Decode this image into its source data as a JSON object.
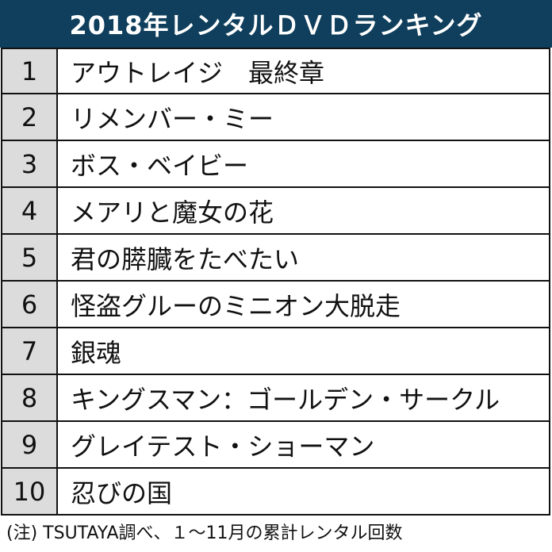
{
  "header": {
    "title": "2018年レンタルＤＶＤランキング"
  },
  "colors": {
    "header_bg": "#0f3f5c",
    "rank_bg": "#dcdcdc"
  },
  "rankings": [
    {
      "rank": "1",
      "title": "アウトレイジ　最終章"
    },
    {
      "rank": "2",
      "title": "リメンバー・ミー"
    },
    {
      "rank": "3",
      "title": "ボス・ベイビー"
    },
    {
      "rank": "4",
      "title": "メアリと魔女の花"
    },
    {
      "rank": "5",
      "title": "君の膵臓をたべたい"
    },
    {
      "rank": "6",
      "title": "怪盗グルーのミニオン大脱走"
    },
    {
      "rank": "7",
      "title": "銀魂"
    },
    {
      "rank": "8",
      "title": "キングスマン：ゴールデン・サークル"
    },
    {
      "rank": "9",
      "title": "グレイテスト・ショーマン"
    },
    {
      "rank": "10",
      "title": "忍びの国"
    }
  ],
  "footnote": "(注) TSUTAYA調べ、１～11月の累計レンタル回数"
}
